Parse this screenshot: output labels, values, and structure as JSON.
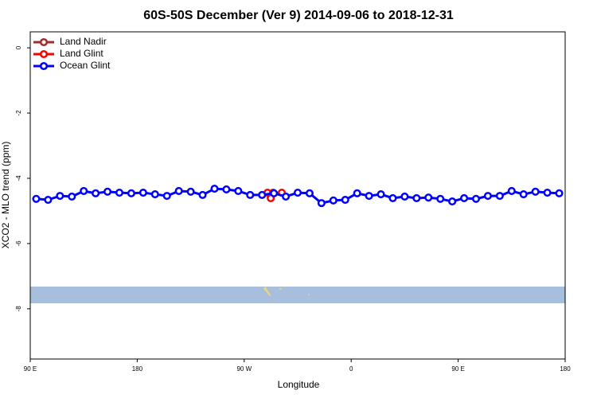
{
  "chart_data": {
    "type": "line",
    "title": "60S-50S December (Ver 9)   2014-09-06 to 2018-12-31",
    "x_label": "Longitude",
    "y_label": "XCO2 - MLO trend (ppm)",
    "xlim": [
      90,
      540
    ],
    "ylim": [
      -9.54,
      0.49
    ],
    "xticks": [
      {
        "value": 90,
        "label": "90 E"
      },
      180,
      {
        "value": 270,
        "label": "90 W"
      },
      {
        "value": 360,
        "label": "0"
      },
      {
        "value": 450,
        "label": "90 E"
      },
      {
        "value": 540,
        "label": "180"
      }
    ],
    "yticks": [
      0,
      -2,
      -4,
      -6,
      -8
    ],
    "legend": "top-left",
    "series": [
      {
        "name": "Land Nadir",
        "color": "#a52a2a",
        "x": [],
        "values": []
      },
      {
        "name": "Land Glint",
        "color": "#ff0000",
        "x": [
          289.6,
          292.3,
          294.3,
          301.6
        ],
        "values": [
          -4.44,
          -4.61,
          -4.44,
          -4.44
        ]
      },
      {
        "name": "Ocean Glint",
        "color": "#0000ff",
        "x": [
          95,
          105,
          115,
          125,
          135,
          145,
          155,
          165,
          175,
          185,
          195,
          205,
          215,
          225,
          235,
          245,
          255,
          265,
          275,
          285,
          295,
          305,
          315,
          325,
          335,
          345,
          355,
          365,
          375,
          385,
          395,
          405,
          415,
          425,
          435,
          445,
          455,
          465,
          475,
          485,
          495,
          505,
          515,
          525,
          535
        ],
        "values": [
          -4.63,
          -4.66,
          -4.54,
          -4.56,
          -4.39,
          -4.46,
          -4.41,
          -4.44,
          -4.46,
          -4.44,
          -4.49,
          -4.54,
          -4.39,
          -4.41,
          -4.51,
          -4.32,
          -4.34,
          -4.39,
          -4.51,
          -4.51,
          -4.46,
          -4.56,
          -4.44,
          -4.46,
          -4.76,
          -4.68,
          -4.66,
          -4.46,
          -4.54,
          -4.49,
          -4.61,
          -4.56,
          -4.61,
          -4.59,
          -4.63,
          -4.71,
          -4.61,
          -4.63,
          -4.54,
          -4.54,
          -4.39,
          -4.49,
          -4.41,
          -4.44,
          -4.46
        ]
      }
    ]
  }
}
